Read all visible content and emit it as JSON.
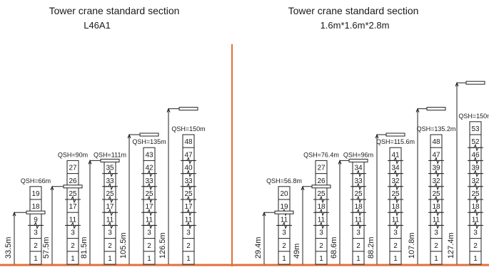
{
  "colors": {
    "line": "#222222",
    "divider": "#e0703a",
    "ground": "#e0703a",
    "background": "#ffffff"
  },
  "left_panel": {
    "title": "Tower  crane standard section",
    "subtitle": "L46A1",
    "towers": [
      {
        "qsh": "QSH=66m",
        "height": "33.5m",
        "levels": [
          "1",
          "2",
          "3",
          "9",
          "18",
          "19"
        ],
        "gaps": [
          3
        ]
      },
      {
        "qsh": "QSH=90m",
        "height": "57.5m",
        "levels": [
          "1",
          "2",
          "3",
          "11",
          "17",
          "25",
          "26",
          "27"
        ],
        "gaps": [
          3,
          5
        ]
      },
      {
        "qsh": "QSH=111m",
        "height": "81.5m",
        "levels": [
          "1",
          "2",
          "3",
          "11",
          "17",
          "25",
          "33",
          "35"
        ],
        "gaps": [
          3,
          4,
          5,
          6,
          7
        ]
      },
      {
        "qsh": "QSH=135m",
        "height": "105.5m",
        "levels": [
          "1",
          "2",
          "3",
          "11",
          "17",
          "25",
          "33",
          "42",
          "43"
        ],
        "gaps": [
          3,
          4,
          5,
          6,
          7
        ]
      },
      {
        "qsh": "QSH=150m",
        "height": "126.5m",
        "levels": [
          "1",
          "2",
          "3",
          "11",
          "17",
          "25",
          "33",
          "40",
          "47",
          "48"
        ],
        "gaps": [
          3,
          4,
          5,
          6,
          7,
          8
        ]
      }
    ]
  },
  "right_panel": {
    "title": "Tower  crane standard section",
    "subtitle": "1.6m*1.6m*2.8m",
    "towers": [
      {
        "qsh": "QSH=56.8m",
        "height": "29.4m",
        "levels": [
          "1",
          "2",
          "3",
          "11",
          "19",
          "20"
        ],
        "gaps": [
          3,
          4
        ]
      },
      {
        "qsh": "QSH=76.4m",
        "height": "49m",
        "levels": [
          "1",
          "2",
          "3",
          "11",
          "18",
          "25",
          "26",
          "27"
        ],
        "gaps": [
          3,
          4,
          5
        ]
      },
      {
        "qsh": "QSH=96m",
        "height": "68.6m",
        "levels": [
          "1",
          "2",
          "3",
          "11",
          "18",
          "25",
          "33",
          "34"
        ],
        "gaps": [
          3,
          4,
          5,
          6,
          7
        ]
      },
      {
        "qsh": "QSH=115.6m",
        "height": "88.2m",
        "levels": [
          "1",
          "2",
          "3",
          "11",
          "18",
          "25",
          "32",
          "34",
          "41"
        ],
        "gaps": [
          3,
          4,
          5,
          6,
          7,
          8
        ]
      },
      {
        "qsh": "QSH=135.2m",
        "height": "107.8m",
        "levels": [
          "1",
          "2",
          "3",
          "11",
          "18",
          "25",
          "32",
          "39",
          "47",
          "48"
        ],
        "gaps": [
          3,
          4,
          5,
          6,
          7,
          8
        ]
      },
      {
        "qsh": "QSH=150m",
        "height": "127.4m",
        "levels": [
          "1",
          "2",
          "3",
          "11",
          "18",
          "25",
          "32",
          "39",
          "46",
          "52",
          "53"
        ],
        "gaps": [
          3,
          4,
          5,
          6,
          7,
          8,
          9
        ]
      }
    ]
  }
}
